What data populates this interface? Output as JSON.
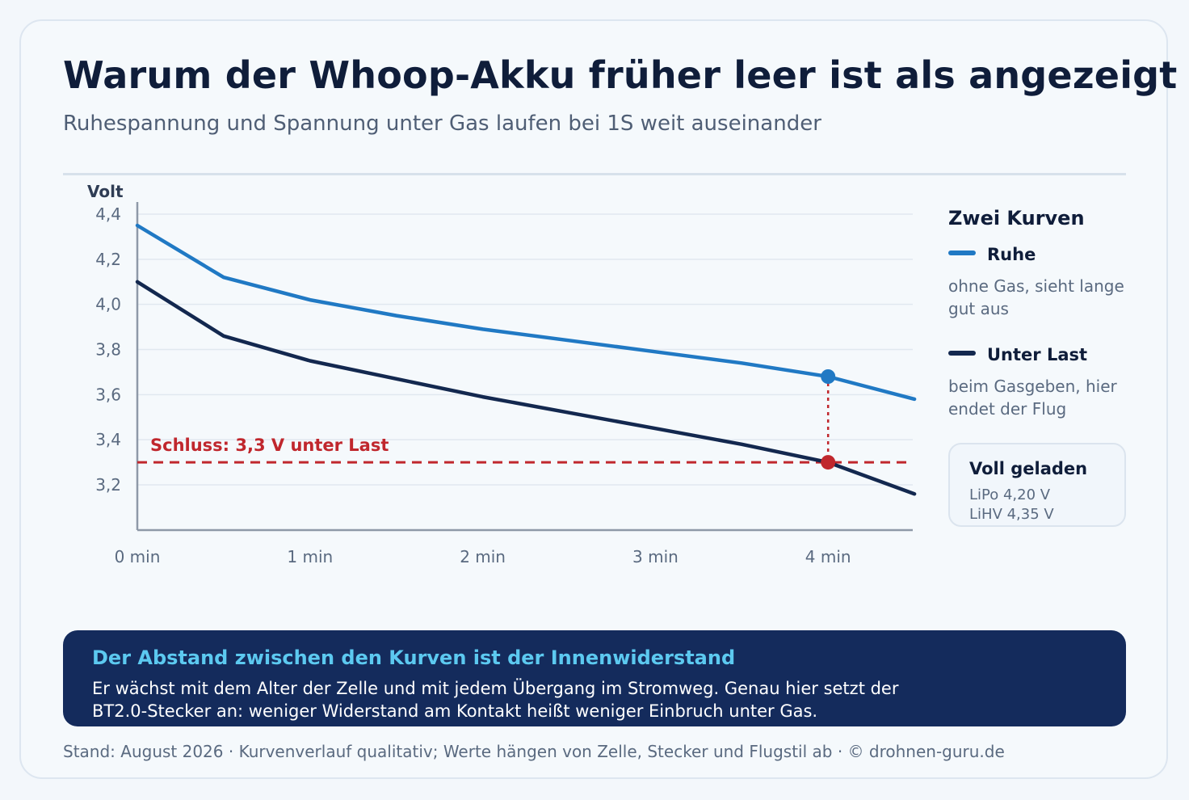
{
  "title": "Warum der Whoop-Akku früher leer ist als angezeigt",
  "subtitle": "Ruhespannung und Spannung unter Gas laufen bei 1S weit auseinander",
  "legend": {
    "heading": "Zwei Kurven",
    "items": [
      {
        "name": "Ruhe",
        "desc": "ohne Gas, sieht lange gut aus",
        "color": "#2079c4"
      },
      {
        "name": "Unter Last",
        "desc": "beim Gasgeben, hier endet der Flug",
        "color": "#13284f"
      }
    ]
  },
  "info_box": {
    "title": "Voll geladen",
    "lines": [
      "LiPo 4,20 V",
      "LiHV 4,35 V"
    ]
  },
  "banner": {
    "title": "Der Abstand zwischen den Kurven ist der Innenwiderstand",
    "text": "Er wächst mit dem Alter der Zelle und mit jedem Übergang im Stromweg. Genau hier setzt der BT2.0-Stecker an: weniger Widerstand am Kontakt heißt weniger Einbruch unter Gas."
  },
  "footer": "Stand: August 2026 · Kurvenverlauf qualitativ; Werte hängen von Zelle, Stecker und Flugstil ab · © drohnen-guru.de",
  "colors": {
    "ruhe": "#2079c4",
    "last": "#13284f",
    "threshold": "#c0272d",
    "grid": "#e1e8f0",
    "axis": "#8e99a8"
  },
  "chart_data": {
    "type": "line",
    "ylabel": "Volt",
    "xlabel": "",
    "xlim": [
      0,
      4.5
    ],
    "ylim": [
      3.2,
      4.4
    ],
    "x_ticks": [
      0,
      1,
      2,
      3,
      4
    ],
    "x_tick_labels": [
      "0 min",
      "1 min",
      "2 min",
      "3 min",
      "4 min"
    ],
    "y_ticks": [
      3.2,
      3.4,
      3.6,
      3.8,
      4.0,
      4.2,
      4.4
    ],
    "y_tick_labels": [
      "3,2",
      "3,4",
      "3,6",
      "3,8",
      "4,0",
      "4,2",
      "4,4"
    ],
    "grid": true,
    "series": [
      {
        "name": "Ruhe",
        "x": [
          0,
          0.5,
          1,
          1.5,
          2,
          2.5,
          3,
          3.5,
          4,
          4.5
        ],
        "values": [
          4.35,
          4.12,
          4.02,
          3.95,
          3.89,
          3.84,
          3.79,
          3.74,
          3.68,
          3.58
        ]
      },
      {
        "name": "Unter Last",
        "x": [
          0,
          0.5,
          1,
          1.5,
          2,
          2.5,
          3,
          3.5,
          4,
          4.5
        ],
        "values": [
          4.1,
          3.86,
          3.75,
          3.67,
          3.59,
          3.52,
          3.45,
          3.38,
          3.3,
          3.16
        ]
      }
    ],
    "threshold": {
      "value": 3.3,
      "label": "Schluss: 3,3 V unter Last"
    },
    "markers": [
      {
        "series": "Ruhe",
        "x": 4,
        "y": 3.68
      },
      {
        "series": "Unter Last",
        "x": 4,
        "y": 3.3
      }
    ]
  }
}
